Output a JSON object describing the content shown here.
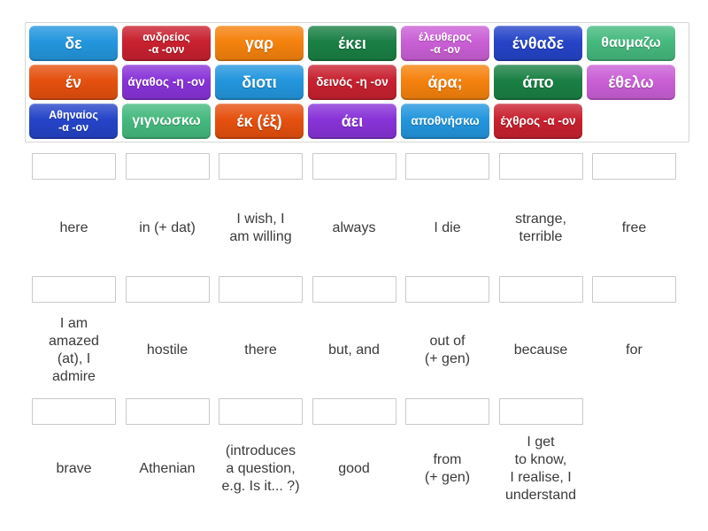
{
  "word_bank": {
    "tiles": [
      {
        "label": "δε",
        "color": "#2396dd"
      },
      {
        "label": "ανδρείος\n-α -ονν",
        "color": "#c8212f"
      },
      {
        "label": "γαρ",
        "color": "#f5820d"
      },
      {
        "label": "έκει",
        "color": "#1a8044"
      },
      {
        "label": "έλευθερος\n-α -ον",
        "color": "#ca5fd6"
      },
      {
        "label": "ένθαδε",
        "color": "#2544c8"
      },
      {
        "label": "θαυμαζω",
        "color": "#45b97e"
      },
      {
        "label": "έν",
        "color": "#e5500e"
      },
      {
        "label": "άγαθος -η -ον",
        "color": "#8833d8"
      },
      {
        "label": "διοτι",
        "color": "#2396dd"
      },
      {
        "label": "δεινός -η -ον",
        "color": "#c8212f"
      },
      {
        "label": "άρα;",
        "color": "#f5820d"
      },
      {
        "label": "άπο",
        "color": "#1a8044"
      },
      {
        "label": "έθελω",
        "color": "#ca5fd6"
      },
      {
        "label": "Αθηναίος\n-α -ον",
        "color": "#2544c8"
      },
      {
        "label": "γιγνωσκω",
        "color": "#45b97e"
      },
      {
        "label": "έκ (έξ)",
        "color": "#e5500e"
      },
      {
        "label": "άει",
        "color": "#8833d8"
      },
      {
        "label": "αποθνήσκω",
        "color": "#2396dd"
      },
      {
        "label": "έχθρος -α -ον",
        "color": "#c8212f"
      }
    ]
  },
  "answers": {
    "rows": [
      {
        "labels": [
          "here",
          "in (+ dat)",
          "I wish, I\nam willing",
          "always",
          "I die",
          "strange,\nterrible",
          "free"
        ]
      },
      {
        "labels": [
          "I am\namazed\n(at), I\nadmire",
          "hostile",
          "there",
          "but, and",
          "out of\n(+ gen)",
          "because",
          "for"
        ]
      },
      {
        "labels": [
          "brave",
          "Athenian",
          "(introduces\na question,\ne.g. Is it... ?)",
          "good",
          "from\n(+ gen)",
          "I get\nto know,\nI realise, I\nunderstand"
        ]
      }
    ]
  }
}
